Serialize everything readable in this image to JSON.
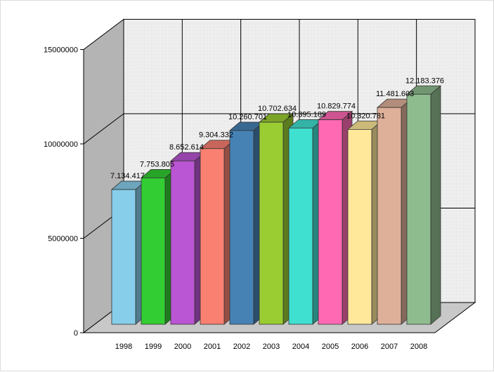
{
  "chart_data": {
    "type": "bar",
    "title": "",
    "xlabel": "",
    "ylabel": "",
    "ylim": [
      0,
      15000000
    ],
    "yticks": [
      0,
      5000000,
      10000000,
      15000000
    ],
    "ytick_labels": [
      "0",
      "5000000",
      "10000000",
      "15000000"
    ],
    "categories": [
      "1998",
      "1999",
      "2000",
      "2001",
      "2002",
      "2003",
      "2004",
      "2005",
      "2006",
      "2007",
      "2008"
    ],
    "values": [
      7134417,
      7753805,
      8652614,
      9304332,
      10260701,
      10702634,
      10395189,
      10829774,
      10320781,
      11481603,
      12183376
    ],
    "data_labels": [
      "7.134.417",
      "7.753.805",
      "8.652.614",
      "9.304.332",
      "10.260.701",
      "10.702.634",
      "10.395.189",
      "10.829.774",
      "10.320.781",
      "11.481.603",
      "12.183.376"
    ],
    "colors": [
      "#87ceeb",
      "#32cd32",
      "#ba55d3",
      "#fa8072",
      "#4682b4",
      "#9acd32",
      "#40e0d0",
      "#ff69b4",
      "#ffe89a",
      "#deb09a",
      "#8fbc8f"
    ],
    "grid": true,
    "style": "3d"
  }
}
